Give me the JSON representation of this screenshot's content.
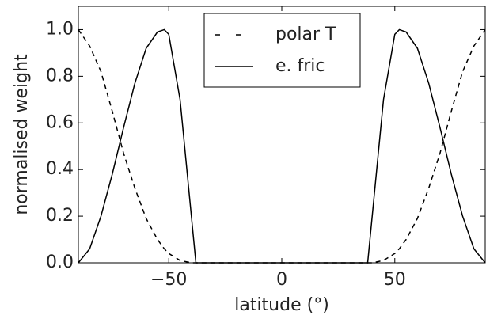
{
  "chart_data": {
    "type": "line",
    "xlabel": "latitude (°)",
    "ylabel": "normalised weight",
    "x": [
      -90,
      -85,
      -80,
      -75,
      -70,
      -65,
      -60,
      -55,
      -52,
      -50,
      -45,
      -40,
      -38,
      0,
      38,
      40,
      45,
      50,
      52,
      55,
      60,
      65,
      70,
      75,
      80,
      85,
      90
    ],
    "series": [
      {
        "name": "polar T",
        "color": "#000000",
        "linestyle": "dashed",
        "values": [
          1.0,
          0.93,
          0.82,
          0.65,
          0.47,
          0.32,
          0.19,
          0.1,
          0.06,
          0.04,
          0.01,
          0.0,
          0.0,
          0.0,
          0.0,
          0.0,
          0.01,
          0.04,
          0.06,
          0.1,
          0.19,
          0.32,
          0.47,
          0.65,
          0.82,
          0.93,
          1.0
        ]
      },
      {
        "name": "e. fric",
        "color": "#000000",
        "linestyle": "solid",
        "values": [
          0.0,
          0.06,
          0.2,
          0.38,
          0.58,
          0.77,
          0.92,
          0.99,
          1.0,
          0.98,
          0.7,
          0.2,
          0.0,
          0.0,
          0.0,
          0.2,
          0.7,
          0.98,
          1.0,
          0.99,
          0.92,
          0.77,
          0.58,
          0.38,
          0.2,
          0.06,
          0.0
        ]
      }
    ],
    "xlim": [
      -90,
      90
    ],
    "ylim": [
      0,
      1.1
    ],
    "xticks": [
      {
        "value": -50,
        "label": "−50"
      },
      0,
      50
    ],
    "yticks": [
      {
        "value": 0,
        "label": "0.0"
      },
      {
        "value": 0.2,
        "label": "0.2"
      },
      {
        "value": 0.4,
        "label": "0.4"
      },
      {
        "value": 0.6,
        "label": "0.6"
      },
      {
        "value": 0.8,
        "label": "0.8"
      },
      {
        "value": 1.0,
        "label": "1.0"
      }
    ],
    "legend": "upper center"
  }
}
